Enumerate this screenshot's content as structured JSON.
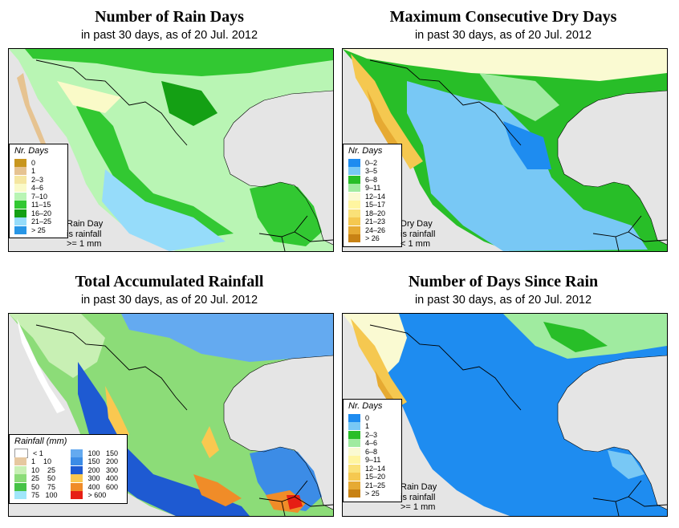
{
  "panels": {
    "rain_days": {
      "title": "Number of Rain Days",
      "subtitle": "in past 30 days, as of  20 Jul. 2012",
      "legend_title": "Nr. Days",
      "legend": [
        {
          "label": "0",
          "color": "#c8961e"
        },
        {
          "label": "1",
          "color": "#e6c391"
        },
        {
          "label": "2–3",
          "color": "#f5e6a0"
        },
        {
          "label": "4–6",
          "color": "#fafac8"
        },
        {
          "label": "7–10",
          "color": "#b9f5b4"
        },
        {
          "label": "11–15",
          "color": "#32c832"
        },
        {
          "label": "16–20",
          "color": "#14a014"
        },
        {
          "label": "21–25",
          "color": "#96dcfa"
        },
        {
          "label": "> 25",
          "color": "#2896e6"
        }
      ],
      "note": [
        "Rain Day",
        "is rainfall",
        ">= 1 mm"
      ]
    },
    "dry_days": {
      "title": "Maximum Consecutive Dry Days",
      "subtitle": "in past 30 days, as of  20 Jul. 2012",
      "legend_title": "Nr. Days",
      "legend": [
        {
          "label": "0–2",
          "color": "#1e8cf0"
        },
        {
          "label": "3–5",
          "color": "#78c8f5"
        },
        {
          "label": "6–8",
          "color": "#28be28"
        },
        {
          "label": "9–11",
          "color": "#a0eba0"
        },
        {
          "label": "12–14",
          "color": "#fafad2"
        },
        {
          "label": "15–17",
          "color": "#fff5a0"
        },
        {
          "label": "18–20",
          "color": "#fae178"
        },
        {
          "label": "21–23",
          "color": "#f5c850"
        },
        {
          "label": "24–26",
          "color": "#e6aa32"
        },
        {
          "label": "> 26",
          "color": "#c88214"
        }
      ],
      "note": [
        "Dry Day",
        "is rainfall",
        "< 1 mm"
      ]
    },
    "total_rain": {
      "title": "Total Accumulated Rainfall",
      "subtitle": "in past 30 days, as of  20 Jul. 2012",
      "legend_title": "Rainfall (mm)",
      "legend_left": [
        {
          "label": "< 1",
          "color": "#ffffff"
        },
        {
          "label": "1    10",
          "color": "#e6c8a0"
        },
        {
          "label": "10    25",
          "color": "#c8f0b4"
        },
        {
          "label": "25    50",
          "color": "#8cdc78"
        },
        {
          "label": "50    75",
          "color": "#46c346"
        },
        {
          "label": "75   100",
          "color": "#a0e6fa"
        }
      ],
      "legend_right": [
        {
          "label": "100   150",
          "color": "#64aaf0"
        },
        {
          "label": "150   200",
          "color": "#3c8ce6"
        },
        {
          "label": "200   300",
          "color": "#1e5ad2"
        },
        {
          "label": "300   400",
          "color": "#fac850"
        },
        {
          "label": "400   600",
          "color": "#f08c28"
        },
        {
          "label": "> 600",
          "color": "#e61e14"
        }
      ]
    },
    "since_rain": {
      "title": "Number of Days Since Rain",
      "subtitle": "in past 30 days, as of  20 Jul. 2012",
      "legend_title": "Nr. Days",
      "legend": [
        {
          "label": "0",
          "color": "#1e8cf0"
        },
        {
          "label": "1",
          "color": "#78c8f5"
        },
        {
          "label": "2–3",
          "color": "#28be28"
        },
        {
          "label": "4–6",
          "color": "#a0eba0"
        },
        {
          "label": "6–8",
          "color": "#fafad2"
        },
        {
          "label": "9–11",
          "color": "#fff5a0"
        },
        {
          "label": "12–14",
          "color": "#fae178"
        },
        {
          "label": "15–20",
          "color": "#f5c850"
        },
        {
          "label": "21–25",
          "color": "#e6aa32"
        },
        {
          "label": "> 25",
          "color": "#c88214"
        }
      ],
      "note": [
        "Rain Day",
        "is rainfall",
        ">= 1 mm"
      ]
    }
  },
  "map_colors": {
    "ocean": "#e5e5e5",
    "border": "#000000"
  }
}
